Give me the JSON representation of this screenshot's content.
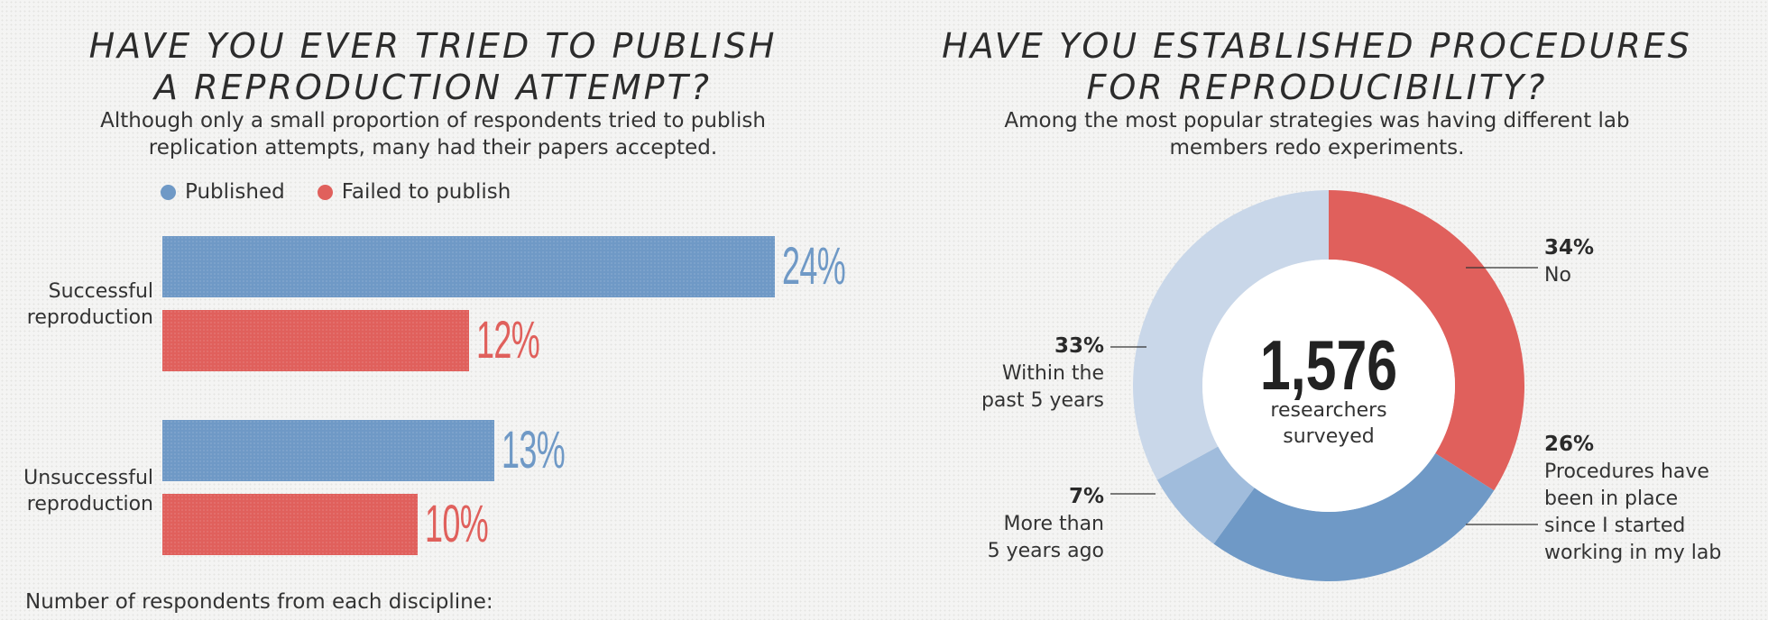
{
  "chart_data": [
    {
      "type": "bar",
      "title": "HAVE YOU EVER TRIED TO PUBLISH A REPRODUCTION ATTEMPT?",
      "title_lines": [
        "HAVE YOU EVER TRIED TO PUBLISH",
        "A REPRODUCTION ATTEMPT?"
      ],
      "subtitle_lines": [
        "Although only a small proportion of respondents tried to publish",
        "replication attempts, many had their papers accepted."
      ],
      "legend_placement": "top",
      "categories": [
        "Successful reproduction",
        "Unsuccessful reproduction"
      ],
      "category_lines": [
        [
          "Successful",
          "reproduction"
        ],
        [
          "Unsuccessful",
          "reproduction"
        ]
      ],
      "series": [
        {
          "name": "Published",
          "color": "#6f99c6",
          "values": [
            24,
            13
          ],
          "labels": [
            "24%",
            "13%"
          ]
        },
        {
          "name": "Failed to publish",
          "color": "#e0605c",
          "values": [
            12,
            10
          ],
          "labels": [
            "12%",
            "10%"
          ]
        }
      ],
      "unit": "%",
      "footnote": "Number of respondents from each discipline:"
    },
    {
      "type": "pie",
      "variant": "donut",
      "title": "HAVE YOU ESTABLISHED PROCEDURES FOR REPRODUCIBILITY?",
      "title_lines": [
        "HAVE YOU ESTABLISHED PROCEDURES",
        "FOR REPRODUCIBILITY?"
      ],
      "subtitle_lines": [
        "Among the most popular strategies was having different lab",
        "members redo experiments."
      ],
      "center": {
        "number": "1,576",
        "lines": [
          "researchers",
          "surveyed"
        ]
      },
      "slices": [
        {
          "label_lines": [
            "No"
          ],
          "value": 34,
          "pct": "34%",
          "color": "#e0605c"
        },
        {
          "label_lines": [
            "Procedures have",
            "been in place",
            "since I started",
            "working in my lab"
          ],
          "value": 26,
          "pct": "26%",
          "color": "#6f99c6"
        },
        {
          "label_lines": [
            "More than",
            "5 years ago"
          ],
          "value": 7,
          "pct": "7%",
          "color": "#a0bcdc"
        },
        {
          "label_lines": [
            "Within the",
            "past 5 years"
          ],
          "value": 33,
          "pct": "33%",
          "color": "#c9d7e9"
        }
      ]
    }
  ]
}
